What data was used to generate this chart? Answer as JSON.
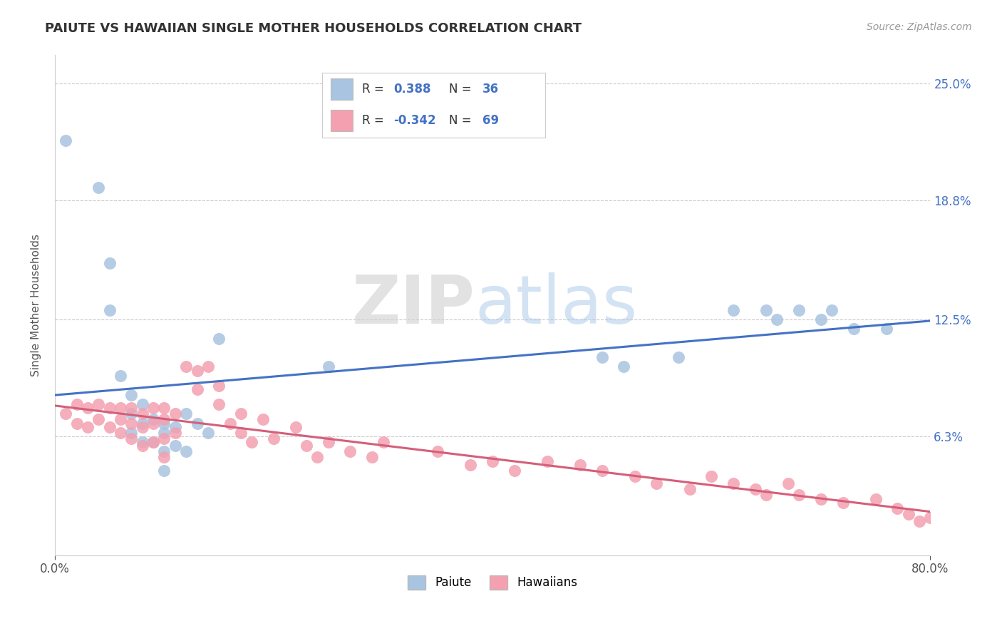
{
  "title": "PAIUTE VS HAWAIIAN SINGLE MOTHER HOUSEHOLDS CORRELATION CHART",
  "source": "Source: ZipAtlas.com",
  "xlabel": "",
  "ylabel": "Single Mother Households",
  "xlim": [
    0.0,
    0.8
  ],
  "ylim": [
    0.0,
    0.265
  ],
  "xticks": [
    0.0,
    0.8
  ],
  "xticklabels": [
    "0.0%",
    "80.0%"
  ],
  "yticks": [
    0.0,
    0.063,
    0.125,
    0.188,
    0.25
  ],
  "yticklabels": [
    "",
    "6.3%",
    "12.5%",
    "18.8%",
    "25.0%"
  ],
  "paiute_color": "#a8c4e0",
  "hawaiian_color": "#f4a0b0",
  "paiute_line_color": "#4472c4",
  "hawaiian_line_color": "#d45f7a",
  "paiute_x": [
    0.01,
    0.04,
    0.05,
    0.05,
    0.06,
    0.07,
    0.07,
    0.07,
    0.08,
    0.08,
    0.08,
    0.09,
    0.09,
    0.1,
    0.1,
    0.1,
    0.1,
    0.11,
    0.11,
    0.12,
    0.12,
    0.13,
    0.14,
    0.15,
    0.25,
    0.5,
    0.52,
    0.57,
    0.62,
    0.65,
    0.66,
    0.68,
    0.7,
    0.71,
    0.73,
    0.76
  ],
  "paiute_y": [
    0.22,
    0.195,
    0.155,
    0.13,
    0.095,
    0.085,
    0.075,
    0.065,
    0.08,
    0.07,
    0.06,
    0.072,
    0.06,
    0.07,
    0.065,
    0.055,
    0.045,
    0.068,
    0.058,
    0.075,
    0.055,
    0.07,
    0.065,
    0.115,
    0.1,
    0.105,
    0.1,
    0.105,
    0.13,
    0.13,
    0.125,
    0.13,
    0.125,
    0.13,
    0.12,
    0.12
  ],
  "hawaiian_x": [
    0.01,
    0.02,
    0.02,
    0.03,
    0.03,
    0.04,
    0.04,
    0.05,
    0.05,
    0.06,
    0.06,
    0.06,
    0.07,
    0.07,
    0.07,
    0.08,
    0.08,
    0.08,
    0.09,
    0.09,
    0.09,
    0.1,
    0.1,
    0.1,
    0.1,
    0.11,
    0.11,
    0.12,
    0.13,
    0.13,
    0.14,
    0.15,
    0.15,
    0.16,
    0.17,
    0.17,
    0.18,
    0.19,
    0.2,
    0.22,
    0.23,
    0.24,
    0.25,
    0.27,
    0.29,
    0.3,
    0.35,
    0.38,
    0.4,
    0.42,
    0.45,
    0.48,
    0.5,
    0.53,
    0.55,
    0.58,
    0.6,
    0.62,
    0.64,
    0.65,
    0.67,
    0.68,
    0.7,
    0.72,
    0.75,
    0.77,
    0.78,
    0.79,
    0.8
  ],
  "hawaiian_y": [
    0.075,
    0.08,
    0.07,
    0.078,
    0.068,
    0.08,
    0.072,
    0.078,
    0.068,
    0.078,
    0.072,
    0.065,
    0.078,
    0.07,
    0.062,
    0.075,
    0.068,
    0.058,
    0.078,
    0.07,
    0.06,
    0.078,
    0.072,
    0.062,
    0.052,
    0.075,
    0.065,
    0.1,
    0.098,
    0.088,
    0.1,
    0.09,
    0.08,
    0.07,
    0.075,
    0.065,
    0.06,
    0.072,
    0.062,
    0.068,
    0.058,
    0.052,
    0.06,
    0.055,
    0.052,
    0.06,
    0.055,
    0.048,
    0.05,
    0.045,
    0.05,
    0.048,
    0.045,
    0.042,
    0.038,
    0.035,
    0.042,
    0.038,
    0.035,
    0.032,
    0.038,
    0.032,
    0.03,
    0.028,
    0.03,
    0.025,
    0.022,
    0.018,
    0.02
  ]
}
